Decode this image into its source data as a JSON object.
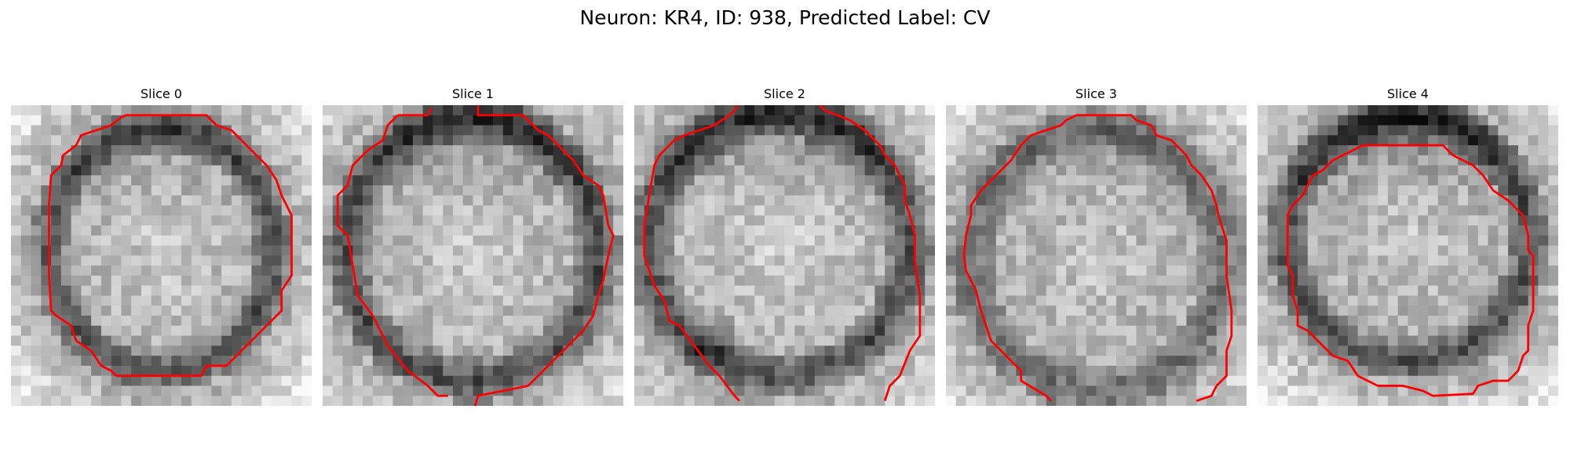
{
  "figure": {
    "title": "Neuron: KR4, ID: 938, Predicted Label: CV"
  },
  "panels": [
    {
      "title": "Slice 0"
    },
    {
      "title": "Slice 1"
    },
    {
      "title": "Slice 2"
    },
    {
      "title": "Slice 3"
    },
    {
      "title": "Slice 4"
    }
  ],
  "colors": {
    "contour": "#ff0000",
    "background": "#ffffff"
  }
}
